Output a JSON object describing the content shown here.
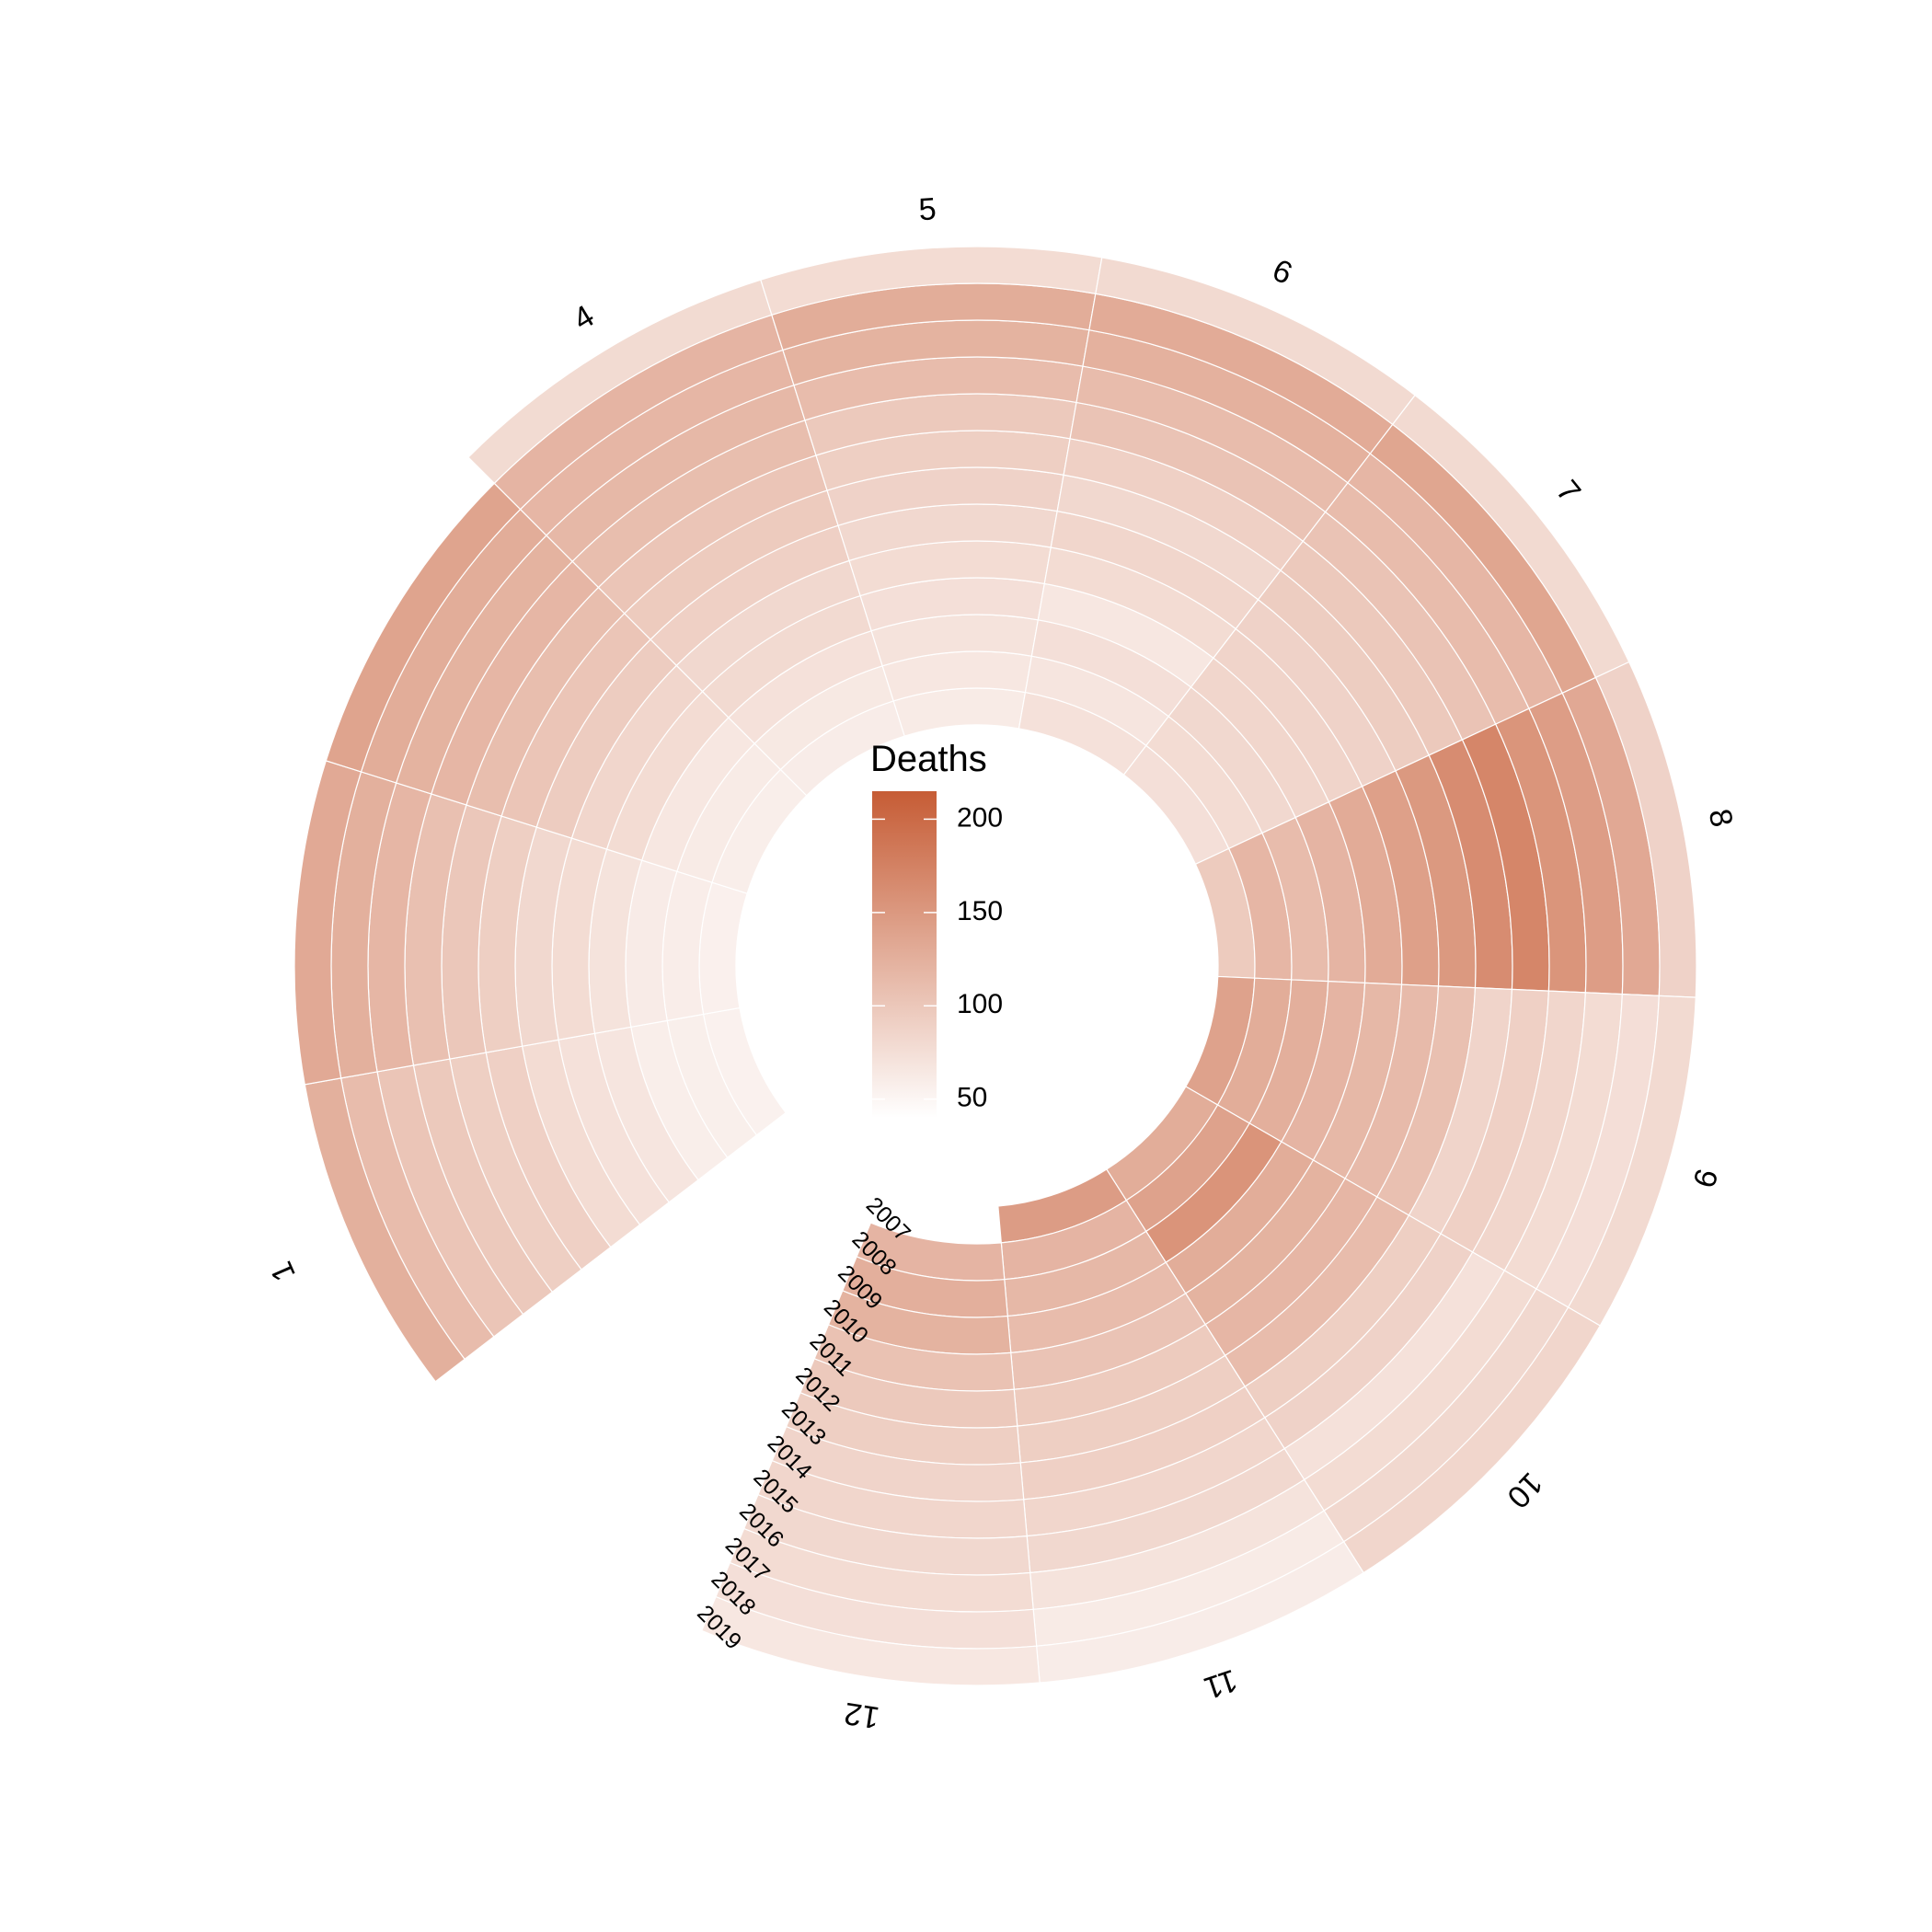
{
  "chart_data": {
    "type": "heatmap",
    "layout": "circular",
    "months": [
      "1",
      "2",
      "3",
      "4",
      "5",
      "6",
      "7",
      "8",
      "9",
      "10",
      "11",
      "12"
    ],
    "month_labels_shown": [
      "1",
      "",
      "",
      "4",
      "5",
      "6",
      "7",
      "8",
      "9",
      "10",
      "11",
      "12"
    ],
    "years": [
      "2007",
      "2008",
      "2009",
      "2010",
      "2011",
      "2012",
      "2013",
      "2014",
      "2015",
      "2016",
      "2017",
      "2018",
      "2019"
    ],
    "values": [
      [
        55,
        57,
        58,
        68,
        72,
        78,
        90,
        92,
        98,
        102,
        112,
        125,
        null
      ],
      [
        56,
        59,
        61,
        70,
        78,
        82,
        92,
        100,
        108,
        118,
        125,
        132,
        null
      ],
      [
        58,
        62,
        66,
        78,
        84,
        95,
        102,
        110,
        118,
        122,
        128,
        138,
        null
      ],
      [
        60,
        64,
        72,
        80,
        82,
        90,
        96,
        102,
        110,
        116,
        118,
        120,
        79
      ],
      [
        62,
        66,
        70,
        74,
        78,
        82,
        88,
        92,
        98,
        112,
        122,
        128,
        78
      ],
      [
        72,
        68,
        74,
        66,
        78,
        84,
        82,
        90,
        104,
        112,
        124,
        130,
        80
      ],
      [
        74,
        78,
        82,
        84,
        86,
        88,
        94,
        98,
        104,
        112,
        118,
        136,
        80
      ],
      [
        96,
        118,
        112,
        120,
        130,
        142,
        150,
        163,
        170,
        154,
        145,
        133,
        88
      ],
      [
        140,
        128,
        126,
        120,
        116,
        114,
        108,
        86,
        90,
        84,
        78,
        75,
        80
      ],
      [
        128,
        140,
        155,
        128,
        122,
        118,
        112,
        92,
        88,
        72,
        78,
        82,
        84
      ],
      [
        146,
        120,
        116,
        112,
        104,
        96,
        92,
        90,
        84,
        82,
        70,
        62,
        60
      ],
      [
        null,
        120,
        126,
        122,
        106,
        98,
        92,
        86,
        84,
        82,
        78,
        74,
        66
      ]
    ],
    "color_scale": {
      "low": "#ffffff",
      "high": "#c65c35",
      "domain": [
        40,
        215
      ]
    },
    "legend": {
      "title": "Deaths",
      "ticks": [
        50,
        100,
        150,
        200
      ],
      "placement": "center"
    },
    "title": "",
    "xlabel": "",
    "ylabel": ""
  }
}
